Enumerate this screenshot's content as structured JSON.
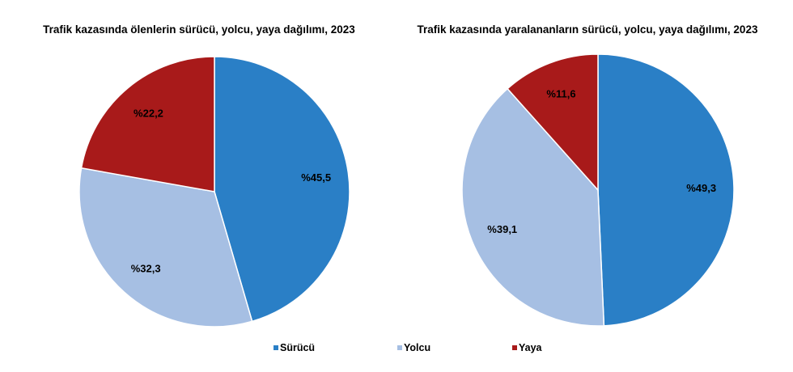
{
  "chart_data": [
    {
      "type": "pie",
      "title": "Trafik kazasında ölenlerin sürücü, yolcu, yaya dağılımı, 2023",
      "categories": [
        "Sürücü",
        "Yolcu",
        "Yaya"
      ],
      "values": [
        45.5,
        32.3,
        22.2
      ],
      "labels": [
        "%45,5",
        "%32,3",
        "%22,2"
      ],
      "start": "12 o'clock, clockwise"
    },
    {
      "type": "pie",
      "title": "Trafik kazasında yaralananların sürücü, yolcu, yaya dağılımı, 2023",
      "categories": [
        "Sürücü",
        "Yolcu",
        "Yaya"
      ],
      "values": [
        49.3,
        39.1,
        11.6
      ],
      "labels": [
        "%49,3",
        "%39,1",
        "%11,6"
      ],
      "start": "12 o'clock, clockwise"
    }
  ],
  "legend": {
    "placement": "bottom",
    "items": [
      "Sürücü",
      "Yolcu",
      "Yaya"
    ]
  },
  "colors": [
    "#2a7fc6",
    "#a6bfe3",
    "#a81a1a"
  ]
}
